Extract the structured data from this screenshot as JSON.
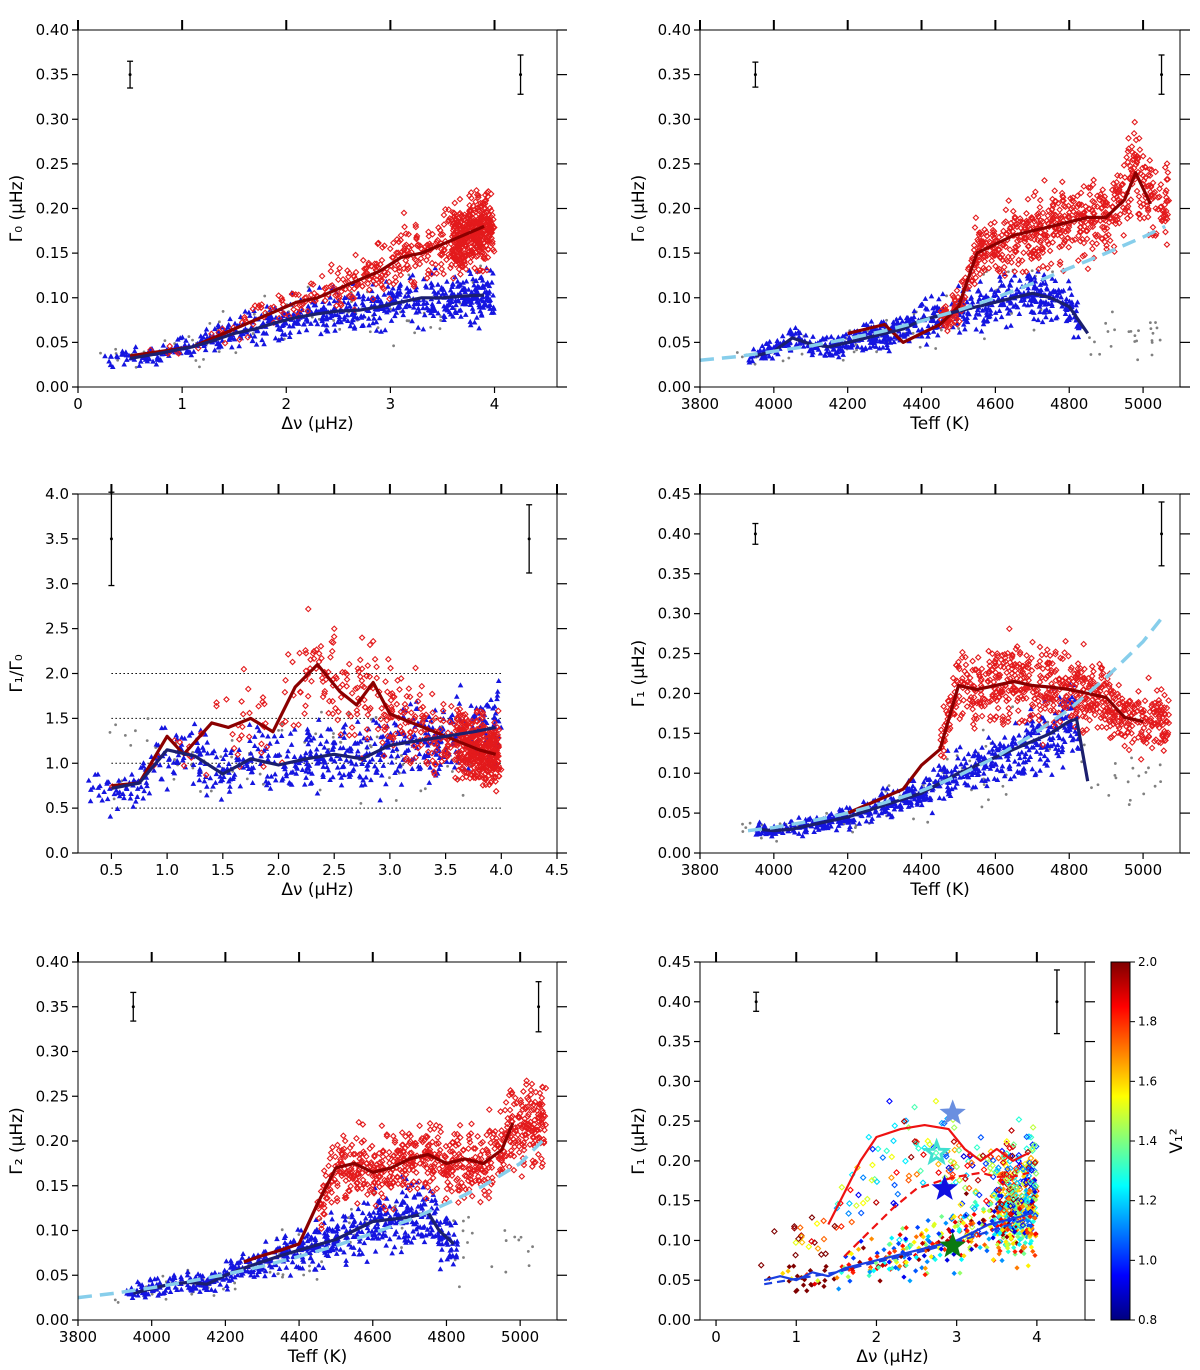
{
  "colors": {
    "red": "#e31a1c",
    "blue": "#1515e0",
    "grey": "#808080",
    "dark_red": "#8b0000",
    "dark_blue": "#1b1f6e",
    "light_blue": "#87ceeb",
    "colormap": [
      "#00007f",
      "#0000ff",
      "#007fff",
      "#00ffff",
      "#7fff7f",
      "#ffff00",
      "#ff7f00",
      "#ff0000",
      "#7f0000"
    ]
  },
  "chart_data": [
    {
      "id": "p1",
      "type": "scatter",
      "xlabel": "Δν (μHz)",
      "ylabel": "Γ₀ (μHz)",
      "xlim": [
        0,
        4.6
      ],
      "ylim": [
        0,
        0.4
      ],
      "xticks": [
        "0",
        "1",
        "2",
        "3",
        "4"
      ],
      "yticks": [
        "0.00",
        "0.05",
        "0.10",
        "0.15",
        "0.20",
        "0.25",
        "0.30",
        "0.35",
        "0.40"
      ],
      "error_bars": [
        {
          "x": 0.5,
          "y": 0.35,
          "err": 0.015
        },
        {
          "x": 4.25,
          "y": 0.35,
          "err": 0.022
        }
      ],
      "series": [
        {
          "kind": "line",
          "color": "dark_red",
          "x": [
            0.5,
            0.8,
            1.1,
            1.3,
            1.5,
            1.7,
            1.9,
            2.1,
            2.3,
            2.5,
            2.7,
            2.9,
            3.1,
            3.3,
            3.5,
            3.7,
            3.9
          ],
          "y": [
            0.035,
            0.04,
            0.045,
            0.055,
            0.065,
            0.075,
            0.085,
            0.095,
            0.1,
            0.11,
            0.12,
            0.13,
            0.145,
            0.15,
            0.16,
            0.17,
            0.18
          ]
        },
        {
          "kind": "line",
          "color": "dark_blue",
          "x": [
            0.5,
            0.8,
            1.1,
            1.3,
            1.5,
            1.7,
            1.9,
            2.1,
            2.3,
            2.5,
            2.7,
            2.9,
            3.1,
            3.3,
            3.5,
            3.7,
            3.9
          ],
          "y": [
            0.032,
            0.038,
            0.045,
            0.052,
            0.06,
            0.065,
            0.072,
            0.078,
            0.082,
            0.085,
            0.086,
            0.09,
            0.095,
            0.1,
            0.1,
            0.102,
            0.103
          ]
        }
      ]
    },
    {
      "id": "p2",
      "type": "scatter",
      "xlabel": "Teff (K)",
      "ylabel": "Γ₀ (μHz)",
      "xlim": [
        3800,
        5100
      ],
      "ylim": [
        0,
        0.4
      ],
      "xticks": [
        "3800",
        "4000",
        "4200",
        "4400",
        "4600",
        "4800",
        "5000"
      ],
      "yticks": [
        "0.00",
        "0.05",
        "0.10",
        "0.15",
        "0.20",
        "0.25",
        "0.30",
        "0.35",
        "0.40"
      ],
      "error_bars": [
        {
          "x": 3950,
          "y": 0.35,
          "err": 0.014
        },
        {
          "x": 5050,
          "y": 0.35,
          "err": 0.022
        }
      ],
      "series": [
        {
          "kind": "line",
          "color": "dark_red",
          "x": [
            4200,
            4250,
            4300,
            4350,
            4400,
            4450,
            4500,
            4550,
            4600,
            4650,
            4700,
            4750,
            4800,
            4850,
            4900,
            4950,
            4980,
            5020
          ],
          "y": [
            0.06,
            0.065,
            0.07,
            0.05,
            0.06,
            0.07,
            0.09,
            0.15,
            0.16,
            0.17,
            0.175,
            0.18,
            0.185,
            0.19,
            0.19,
            0.21,
            0.24,
            0.205
          ]
        },
        {
          "kind": "line",
          "color": "dark_blue",
          "x": [
            3950,
            4000,
            4050,
            4100,
            4150,
            4200,
            4250,
            4300,
            4350,
            4400,
            4450,
            4500,
            4550,
            4600,
            4650,
            4700,
            4750,
            4800,
            4850
          ],
          "y": [
            0.035,
            0.04,
            0.055,
            0.048,
            0.045,
            0.05,
            0.055,
            0.06,
            0.065,
            0.075,
            0.08,
            0.085,
            0.09,
            0.095,
            0.1,
            0.105,
            0.1,
            0.09,
            0.06
          ]
        },
        {
          "kind": "dashed",
          "color": "light_blue",
          "x": [
            3800,
            3900,
            4000,
            4100,
            4200,
            4300,
            4400,
            4500,
            4600,
            4700,
            4800,
            4900,
            5000,
            5060
          ],
          "y": [
            0.03,
            0.034,
            0.04,
            0.046,
            0.054,
            0.063,
            0.074,
            0.086,
            0.1,
            0.116,
            0.133,
            0.15,
            0.168,
            0.18
          ]
        }
      ]
    },
    {
      "id": "p3",
      "type": "scatter",
      "xlabel": "Δν (μHz)",
      "ylabel": "Γ₁/Γ₀",
      "xlim": [
        0.2,
        4.5
      ],
      "ylim": [
        0,
        4.0
      ],
      "xticks": [
        "0.5",
        "1.0",
        "1.5",
        "2.0",
        "2.5",
        "3.0",
        "3.5",
        "4.0",
        "4.5"
      ],
      "yticks": [
        "0.0",
        "0.5",
        "1.0",
        "1.5",
        "2.0",
        "2.5",
        "3.0",
        "3.5",
        "4.0"
      ],
      "hlines": [
        0.5,
        1.0,
        1.5,
        2.0
      ],
      "error_bars": [
        {
          "x": 0.5,
          "y": 3.5,
          "err": 0.52
        },
        {
          "x": 4.25,
          "y": 3.5,
          "err": 0.38
        }
      ],
      "series": [
        {
          "kind": "line",
          "color": "dark_red",
          "x": [
            0.5,
            0.75,
            1.0,
            1.15,
            1.4,
            1.55,
            1.75,
            1.95,
            2.15,
            2.35,
            2.55,
            2.7,
            2.85,
            3.0,
            3.2,
            3.4,
            3.6,
            3.8,
            3.95
          ],
          "y": [
            0.75,
            0.78,
            1.3,
            1.1,
            1.45,
            1.4,
            1.5,
            1.35,
            1.85,
            2.1,
            1.8,
            1.65,
            1.9,
            1.55,
            1.45,
            1.35,
            1.25,
            1.15,
            1.1
          ]
        },
        {
          "kind": "line",
          "color": "dark_blue",
          "x": [
            0.5,
            0.75,
            1.0,
            1.25,
            1.5,
            1.75,
            2.0,
            2.25,
            2.5,
            2.75,
            3.0,
            3.25,
            3.5,
            3.75,
            3.95
          ],
          "y": [
            0.72,
            0.78,
            1.15,
            1.08,
            0.88,
            1.05,
            0.98,
            1.05,
            1.1,
            1.05,
            1.2,
            1.25,
            1.3,
            1.35,
            1.4
          ]
        }
      ]
    },
    {
      "id": "p4",
      "type": "scatter",
      "xlabel": "Teff (K)",
      "ylabel": "Γ₁ (μHz)",
      "xlim": [
        3800,
        5100
      ],
      "ylim": [
        0,
        0.45
      ],
      "xticks": [
        "3800",
        "4000",
        "4200",
        "4400",
        "4600",
        "4800",
        "5000"
      ],
      "yticks": [
        "0.00",
        "0.05",
        "0.10",
        "0.15",
        "0.20",
        "0.25",
        "0.30",
        "0.35",
        "0.40",
        "0.45"
      ],
      "error_bars": [
        {
          "x": 3950,
          "y": 0.4,
          "err": 0.013
        },
        {
          "x": 5050,
          "y": 0.4,
          "err": 0.04
        }
      ],
      "series": [
        {
          "kind": "line",
          "color": "dark_red",
          "x": [
            4200,
            4250,
            4300,
            4350,
            4400,
            4450,
            4500,
            4550,
            4600,
            4650,
            4700,
            4750,
            4800,
            4850,
            4900,
            4950,
            5000
          ],
          "y": [
            0.05,
            0.06,
            0.07,
            0.08,
            0.11,
            0.13,
            0.21,
            0.205,
            0.21,
            0.215,
            0.21,
            0.208,
            0.205,
            0.2,
            0.195,
            0.17,
            0.165
          ]
        },
        {
          "kind": "line",
          "color": "dark_blue",
          "x": [
            3950,
            4000,
            4050,
            4100,
            4150,
            4200,
            4300,
            4400,
            4500,
            4600,
            4700,
            4750,
            4800,
            4820,
            4850
          ],
          "y": [
            0.03,
            0.028,
            0.03,
            0.035,
            0.04,
            0.045,
            0.06,
            0.075,
            0.1,
            0.12,
            0.14,
            0.15,
            0.165,
            0.168,
            0.09
          ]
        },
        {
          "kind": "dashed",
          "color": "light_blue",
          "x": [
            3930,
            4000,
            4100,
            4200,
            4300,
            4400,
            4500,
            4600,
            4700,
            4800,
            4900,
            5000,
            5060
          ],
          "y": [
            0.028,
            0.032,
            0.04,
            0.05,
            0.063,
            0.078,
            0.097,
            0.12,
            0.148,
            0.18,
            0.22,
            0.265,
            0.3
          ]
        }
      ]
    },
    {
      "id": "p5",
      "type": "scatter",
      "xlabel": "Teff (K)",
      "ylabel": "Γ₂ (μHz)",
      "xlim": [
        3800,
        5100
      ],
      "ylim": [
        0,
        0.4
      ],
      "xticks": [
        "3800",
        "4000",
        "4200",
        "4400",
        "4600",
        "4800",
        "5000"
      ],
      "yticks": [
        "0.00",
        "0.05",
        "0.10",
        "0.15",
        "0.20",
        "0.25",
        "0.30",
        "0.35",
        "0.40"
      ],
      "error_bars": [
        {
          "x": 3950,
          "y": 0.35,
          "err": 0.016
        },
        {
          "x": 5050,
          "y": 0.35,
          "err": 0.028
        }
      ],
      "series": [
        {
          "kind": "line",
          "color": "dark_red",
          "x": [
            4250,
            4300,
            4350,
            4400,
            4450,
            4500,
            4550,
            4600,
            4650,
            4700,
            4750,
            4800,
            4850,
            4900,
            4950,
            4980
          ],
          "y": [
            0.065,
            0.072,
            0.078,
            0.085,
            0.13,
            0.17,
            0.175,
            0.165,
            0.17,
            0.18,
            0.185,
            0.175,
            0.18,
            0.175,
            0.19,
            0.22
          ]
        },
        {
          "kind": "line",
          "color": "dark_blue",
          "x": [
            3950,
            4000,
            4050,
            4100,
            4150,
            4200,
            4250,
            4300,
            4350,
            4400,
            4500,
            4600,
            4700,
            4750,
            4780,
            4820
          ],
          "y": [
            0.03,
            0.035,
            0.04,
            0.042,
            0.04,
            0.05,
            0.058,
            0.065,
            0.072,
            0.078,
            0.09,
            0.11,
            0.115,
            0.12,
            0.1,
            0.085
          ]
        },
        {
          "kind": "dashed",
          "color": "light_blue",
          "x": [
            3800,
            3900,
            4000,
            4100,
            4200,
            4300,
            4400,
            4500,
            4600,
            4700,
            4800,
            4900,
            5000,
            5060
          ],
          "y": [
            0.025,
            0.03,
            0.036,
            0.043,
            0.051,
            0.06,
            0.071,
            0.083,
            0.097,
            0.112,
            0.13,
            0.15,
            0.175,
            0.2
          ]
        }
      ]
    },
    {
      "id": "p6",
      "type": "scatter",
      "xlabel": "Δν (μHz)",
      "ylabel": "Γ₁ (μHz)",
      "xlim": [
        -0.2,
        4.6
      ],
      "ylim": [
        0,
        0.45
      ],
      "xticks": [
        "0",
        "1",
        "2",
        "3",
        "4"
      ],
      "yticks": [
        "0.00",
        "0.05",
        "0.10",
        "0.15",
        "0.20",
        "0.25",
        "0.30",
        "0.35",
        "0.40",
        "0.45"
      ],
      "colorbar": {
        "label": "V₁²",
        "min": 0.8,
        "max": 2.0,
        "ticks": [
          "0.8",
          "1.0",
          "1.2",
          "1.4",
          "1.6",
          "1.8",
          "2.0"
        ]
      },
      "error_bars": [
        {
          "x": 0.5,
          "y": 0.4,
          "err": 0.012
        },
        {
          "x": 4.25,
          "y": 0.4,
          "err": 0.04
        }
      ],
      "stars": [
        {
          "x": 2.95,
          "y": 0.26,
          "color": "#6a8fe0"
        },
        {
          "x": 2.75,
          "y": 0.21,
          "color": "#40e0d0"
        },
        {
          "x": 2.85,
          "y": 0.165,
          "color": "#1010e0"
        },
        {
          "x": 2.95,
          "y": 0.093,
          "color": "#0a7a10"
        }
      ],
      "series": [
        {
          "kind": "line",
          "color": "#ee1111",
          "x": [
            1.4,
            1.6,
            1.8,
            2.0,
            2.3,
            2.6,
            2.9,
            3.1,
            3.3,
            3.5,
            3.7,
            3.9
          ],
          "y": [
            0.12,
            0.16,
            0.2,
            0.23,
            0.24,
            0.245,
            0.24,
            0.215,
            0.2,
            0.215,
            0.2,
            0.21
          ]
        },
        {
          "kind": "dashed",
          "color": "#ee1111",
          "x": [
            1.6,
            1.8,
            2.0,
            2.2,
            2.5,
            2.8,
            3.0,
            3.3,
            3.5,
            3.7,
            3.9
          ],
          "y": [
            0.08,
            0.1,
            0.12,
            0.14,
            0.165,
            0.175,
            0.18,
            0.185,
            0.18,
            0.18,
            0.185
          ]
        },
        {
          "kind": "line",
          "color": "#1a3fe0",
          "x": [
            0.6,
            0.8,
            1.0,
            1.2,
            1.4,
            1.6,
            1.8,
            2.0,
            2.2,
            2.4,
            2.6,
            2.8,
            3.0,
            3.2,
            3.4,
            3.6,
            3.8,
            3.95
          ],
          "y": [
            0.05,
            0.055,
            0.05,
            0.06,
            0.055,
            0.065,
            0.07,
            0.075,
            0.08,
            0.085,
            0.09,
            0.095,
            0.1,
            0.11,
            0.12,
            0.125,
            0.13,
            0.135
          ]
        },
        {
          "kind": "dashed",
          "color": "#1a3fe0",
          "x": [
            0.6,
            0.9,
            1.2,
            1.5,
            1.8,
            2.1,
            2.4,
            2.7,
            3.0,
            3.3,
            3.6,
            3.9
          ],
          "y": [
            0.045,
            0.05,
            0.055,
            0.06,
            0.068,
            0.075,
            0.082,
            0.09,
            0.098,
            0.108,
            0.118,
            0.128
          ]
        }
      ]
    }
  ]
}
